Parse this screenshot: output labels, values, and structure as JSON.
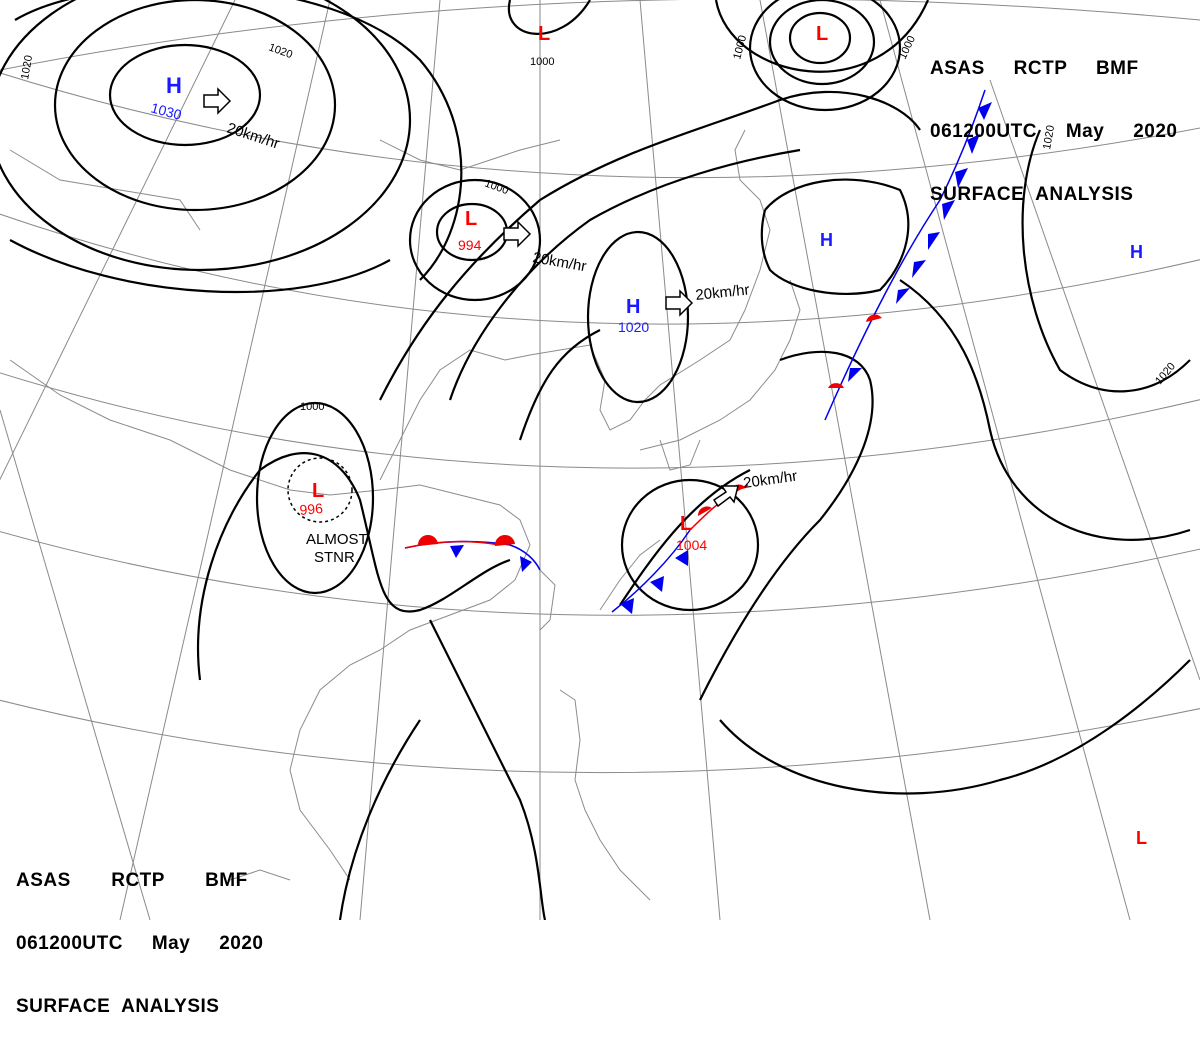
{
  "header_top_right": {
    "line1": "ASAS     RCTP     BMF",
    "line2": "061200UTC     May     2020",
    "line3": "SURFACE  ANALYSIS"
  },
  "header_bottom_left": {
    "line1": "ASAS       RCTP       BMF",
    "line2": "061200UTC     May     2020",
    "line3": "SURFACE  ANALYSIS"
  },
  "colors": {
    "high": "#1a1aff",
    "low": "#ff0000",
    "cold_front": "#0000ee",
    "warm_front": "#ee0000",
    "isobar": "#000000",
    "grid": "#8a8a8a",
    "coast": "#8c8c8c"
  },
  "pressure_centers": [
    {
      "type": "H",
      "value": "1030"
    },
    {
      "type": "L",
      "value": "994"
    },
    {
      "type": "H",
      "value": "1020"
    },
    {
      "type": "L",
      "value": "996"
    },
    {
      "type": "L",
      "value": "1004"
    },
    {
      "type": "L",
      "value": ""
    },
    {
      "type": "L",
      "value": ""
    },
    {
      "type": "H",
      "value": ""
    },
    {
      "type": "H",
      "value": ""
    },
    {
      "type": "L",
      "value": ""
    }
  ],
  "isobar_labels": [
    "1020",
    "1020",
    "1000",
    "1000",
    "1000",
    "1000",
    "1000",
    "1020",
    "1020"
  ],
  "motion_labels": [
    "20km/hr",
    "20km/hr",
    "20km/hr",
    "20km/hr"
  ],
  "annotations": {
    "stationary_note_1": "ALMOST",
    "stationary_note_2": "STNR"
  }
}
